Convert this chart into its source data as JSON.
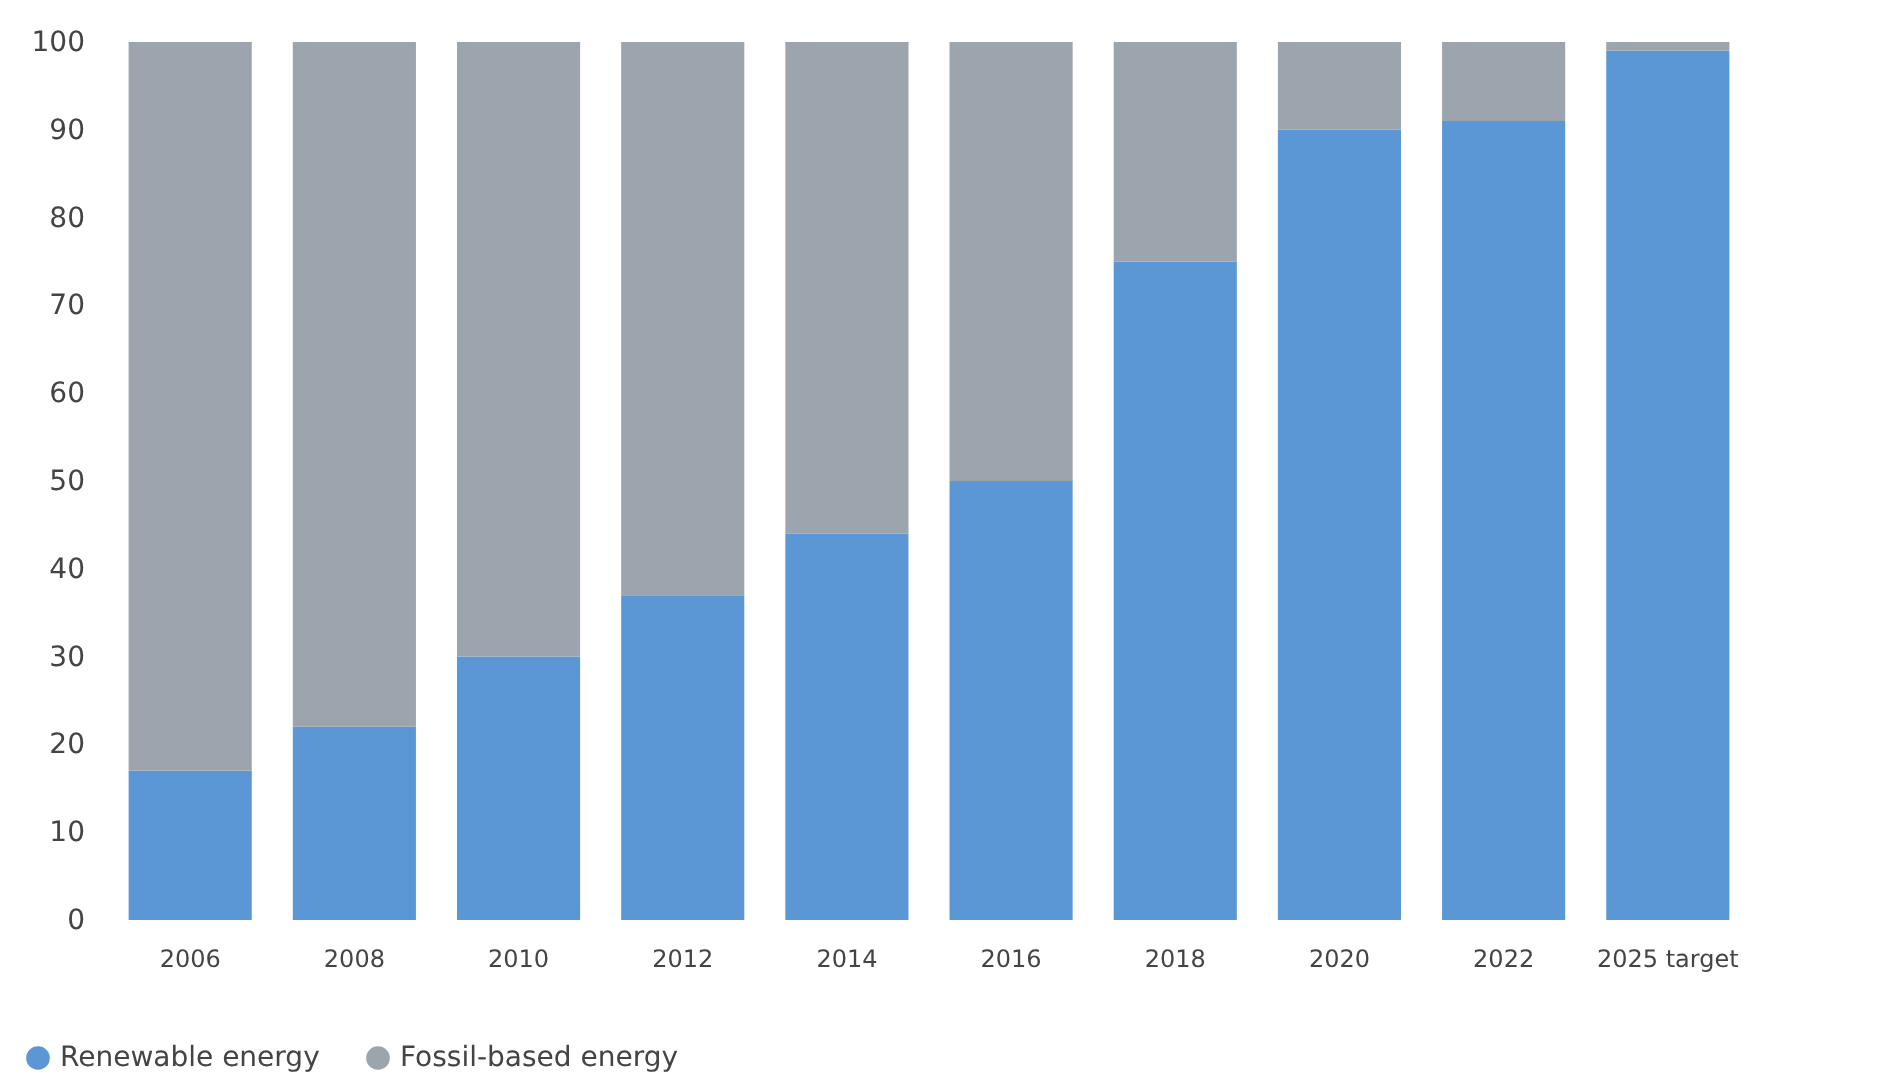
{
  "chart_data": {
    "type": "bar",
    "stacked": true,
    "categories": [
      "2006",
      "2008",
      "2010",
      "2012",
      "2014",
      "2016",
      "2018",
      "2020",
      "2022",
      "2025 target"
    ],
    "series": [
      {
        "name": "Renewable energy",
        "color": "#5b97d5",
        "values": [
          17,
          22,
          30,
          37,
          44,
          50,
          75,
          90,
          91,
          99
        ]
      },
      {
        "name": "Fossil-based energy",
        "color": "#9ca4ad",
        "values": [
          83,
          78,
          70,
          63,
          56,
          50,
          25,
          10,
          9,
          1
        ]
      }
    ],
    "ylim": [
      0,
      100
    ],
    "yticks": [
      0,
      10,
      20,
      30,
      40,
      50,
      60,
      70,
      80,
      90,
      100
    ],
    "grid": false,
    "legend": "bottom left"
  }
}
